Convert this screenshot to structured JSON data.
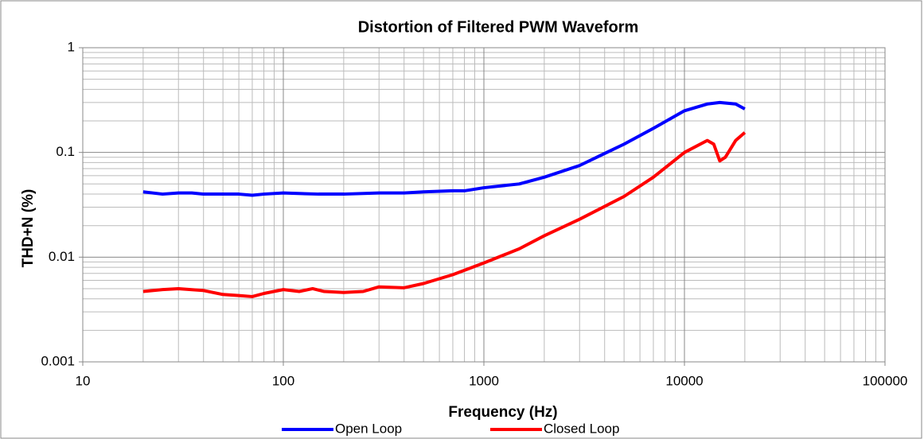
{
  "chart_data": {
    "type": "line",
    "title": "Distortion of Filtered PWM Waveform",
    "x_label": "Frequency (Hz)",
    "y_label": "THD+N (%)",
    "xscale": "log",
    "yscale": "log",
    "grid": true,
    "minor_grid": true,
    "legend": "bottom",
    "xlim": [
      10,
      100000
    ],
    "xticks": [
      10,
      100,
      1000,
      10000,
      100000
    ],
    "ylim": [
      0.001,
      1
    ],
    "yticks": [
      0.001,
      0.01,
      0.1,
      1
    ],
    "series": [
      {
        "name": "Open Loop",
        "color": "#0000ff",
        "x": [
          20,
          25,
          30,
          35,
          40,
          50,
          60,
          70,
          80,
          100,
          150,
          200,
          300,
          400,
          500,
          700,
          800,
          1000,
          1500,
          2000,
          3000,
          5000,
          7000,
          10000,
          13000,
          15000,
          18000,
          20000
        ],
        "values": [
          0.042,
          0.04,
          0.041,
          0.041,
          0.04,
          0.04,
          0.04,
          0.039,
          0.04,
          0.041,
          0.04,
          0.04,
          0.041,
          0.041,
          0.042,
          0.043,
          0.043,
          0.046,
          0.05,
          0.058,
          0.075,
          0.12,
          0.17,
          0.25,
          0.29,
          0.3,
          0.29,
          0.26
        ]
      },
      {
        "name": "Closed Loop",
        "color": "#ff0000",
        "x": [
          20,
          25,
          30,
          40,
          50,
          60,
          70,
          80,
          100,
          120,
          140,
          160,
          200,
          250,
          300,
          400,
          500,
          700,
          1000,
          1500,
          2000,
          3000,
          5000,
          7000,
          10000,
          13000,
          14000,
          15000,
          16000,
          18000,
          20000
        ],
        "values": [
          0.0047,
          0.0049,
          0.005,
          0.0048,
          0.0044,
          0.0043,
          0.0042,
          0.0045,
          0.0049,
          0.0047,
          0.005,
          0.0047,
          0.0046,
          0.0047,
          0.0052,
          0.0051,
          0.0056,
          0.0068,
          0.0088,
          0.012,
          0.016,
          0.023,
          0.038,
          0.058,
          0.1,
          0.13,
          0.12,
          0.083,
          0.09,
          0.13,
          0.155
        ]
      }
    ]
  }
}
